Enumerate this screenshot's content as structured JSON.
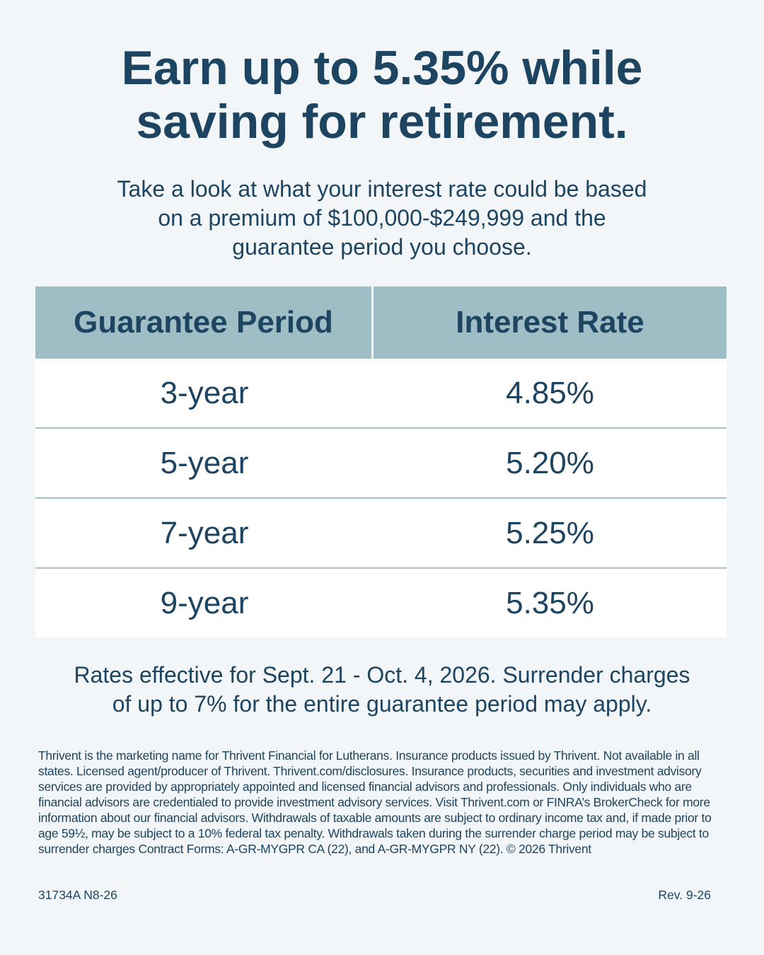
{
  "header": {
    "title_lines": [
      "Earn up to 5.35% while",
      "saving for retirement."
    ],
    "subtitle_lines": [
      "Take a look at what your interest rate could be based",
      "on a premium of $100,000-$249,999 and the",
      "guarantee period you choose."
    ]
  },
  "table": {
    "headers": [
      "Guarantee Period",
      "Interest Rate"
    ],
    "rows": [
      [
        "3-year",
        "4.85%"
      ],
      [
        "5-year",
        "5.20%"
      ],
      [
        "7-year",
        "5.25%"
      ],
      [
        "9-year",
        "5.35%"
      ]
    ]
  },
  "note_lines": [
    "Rates effective for Sept. 21 - Oct. 4, 2026. Surrender charges",
    "of up to 7% for the entire guarantee period may apply."
  ],
  "disclaimer": "Thrivent is the marketing name for Thrivent Financial for Lutherans. Insurance products issued by Thrivent. Not available in all states. Licensed agent/producer of Thrivent. Thrivent.com/disclosures. Insurance products, securities and investment advisory services are provided by appropriately appointed and licensed financial advisors and professionals. Only individuals who are financial advisors are credentialed to provide investment advisory services. Visit Thrivent.com or FINRA’s BrokerCheck for more information about our financial advisors. Withdrawals of taxable amounts are subject to ordinary income tax and, if made prior to age 59½, may be subject to a 10% federal tax penalty. Withdrawals taken during the surrender charge period may be subject to surrender charges Contract Forms: A-GR-MYGPR CA (22), and A-GR-MYGPR NY (22). © 2026 Thrivent",
  "footer": {
    "code": "31734A N8-26",
    "revision": "Rev. 9-26"
  }
}
